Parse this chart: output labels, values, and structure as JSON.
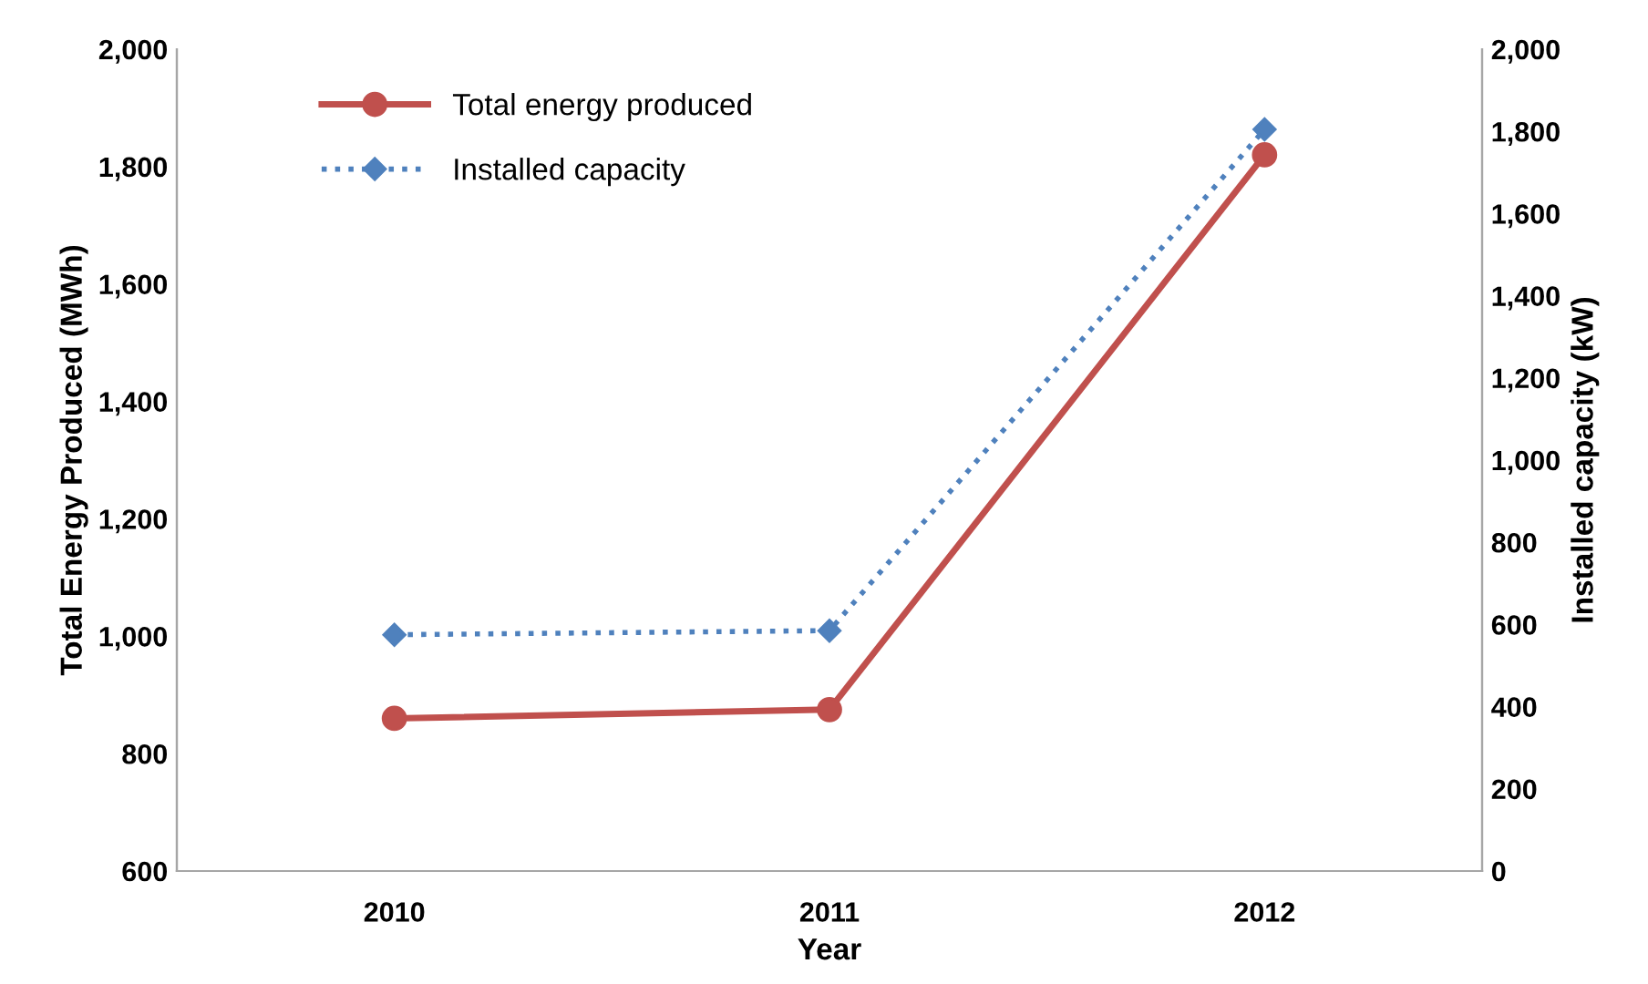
{
  "chart_data": {
    "type": "line",
    "xlabel": "Year",
    "ylabel": "Total Energy Produced (MWh)",
    "y2label": "Installed capacity (kW)",
    "categories": [
      "2010",
      "2011",
      "2012"
    ],
    "series": [
      {
        "name": "Total energy produced",
        "color": "#c0504d",
        "values": [
          860,
          875,
          1820
        ],
        "marker": "circle",
        "line_style": "solid"
      },
      {
        "name": "Installed capacity",
        "color": "#4f81bd",
        "values": [
          575,
          585,
          1805
        ],
        "marker": "diamond",
        "line_style": "dotted",
        "axis": "y2"
      }
    ],
    "ylim": [
      600,
      2000
    ],
    "yticks": [
      {
        "value": 600,
        "label": "600"
      },
      {
        "value": 800,
        "label": "800"
      },
      {
        "value": 1000,
        "label": "1,000"
      },
      {
        "value": 1200,
        "label": "1,200"
      },
      {
        "value": 1400,
        "label": "1,400"
      },
      {
        "value": 1600,
        "label": "1,600"
      },
      {
        "value": 1800,
        "label": "1,800"
      },
      {
        "value": 2000,
        "label": "2,000"
      }
    ],
    "y2lim": [
      0,
      2000
    ],
    "y2ticks": [
      0,
      200,
      400,
      600,
      800,
      {
        "value": 1000,
        "label": "1,000"
      },
      {
        "value": 1200,
        "label": "1,200"
      },
      {
        "value": 1400,
        "label": "1,400"
      },
      {
        "value": 1600,
        "label": "1,600"
      },
      {
        "value": 1800,
        "label": "1,800"
      },
      {
        "value": 2000,
        "label": "2,000"
      }
    ],
    "grid": false,
    "legend": "top left"
  }
}
